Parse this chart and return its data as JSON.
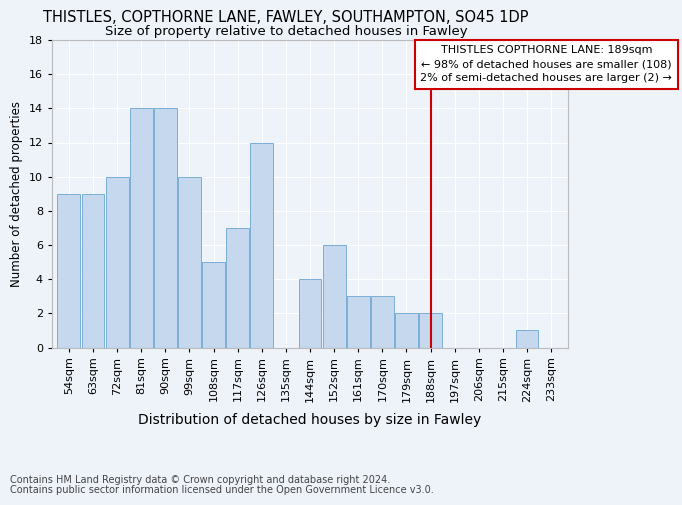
{
  "title": "THISTLES, COPTHORNE LANE, FAWLEY, SOUTHAMPTON, SO45 1DP",
  "subtitle": "Size of property relative to detached houses in Fawley",
  "xlabel": "Distribution of detached houses by size in Fawley",
  "ylabel": "Number of detached properties",
  "footer_line1": "Contains HM Land Registry data © Crown copyright and database right 2024.",
  "footer_line2": "Contains public sector information licensed under the Open Government Licence v3.0.",
  "categories": [
    "54sqm",
    "63sqm",
    "72sqm",
    "81sqm",
    "90sqm",
    "99sqm",
    "108sqm",
    "117sqm",
    "126sqm",
    "135sqm",
    "144sqm",
    "152sqm",
    "161sqm",
    "170sqm",
    "179sqm",
    "188sqm",
    "197sqm",
    "206sqm",
    "215sqm",
    "224sqm",
    "233sqm"
  ],
  "values": [
    9,
    9,
    10,
    14,
    14,
    10,
    5,
    7,
    12,
    0,
    4,
    6,
    3,
    3,
    2,
    2,
    0,
    0,
    0,
    1,
    0
  ],
  "bar_color": "#c5d8ee",
  "bar_edge_color": "#7aaed6",
  "red_line_x": 15,
  "annotation_title": "THISTLES COPTHORNE LANE: 189sqm",
  "annotation_line1": "← 98% of detached houses are smaller (108)",
  "annotation_line2": "2% of semi-detached houses are larger (2) →",
  "annotation_color": "#cc0000",
  "ylim": [
    0,
    18
  ],
  "yticks": [
    0,
    2,
    4,
    6,
    8,
    10,
    12,
    14,
    16,
    18
  ],
  "background_color": "#eef2f9",
  "grid_color": "#ffffff",
  "title_fontsize": 10.5,
  "subtitle_fontsize": 9.5,
  "xlabel_fontsize": 10,
  "ylabel_fontsize": 8.5,
  "tick_fontsize": 8,
  "footer_fontsize": 7,
  "annotation_fontsize": 8
}
